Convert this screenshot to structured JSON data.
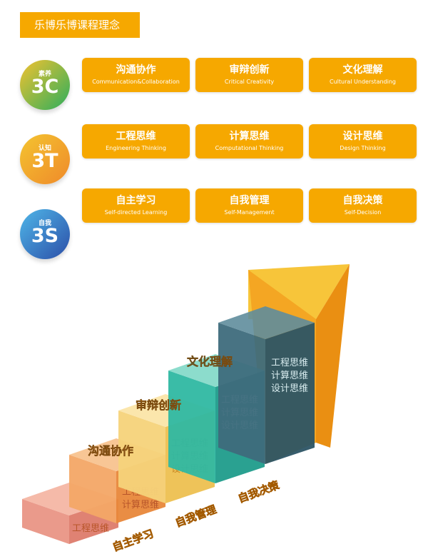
{
  "title": "乐博乐博课程理念",
  "rows": [
    {
      "small": "素养",
      "big": "3C",
      "grad": [
        "#f2c230",
        "#2dae5c"
      ],
      "cards": [
        {
          "zh": "沟通协作",
          "en": "Communication&Collaboration"
        },
        {
          "zh": "审辩创新",
          "en": "Critical Creativity"
        },
        {
          "zh": "文化理解",
          "en": "Cultural Understanding"
        }
      ]
    },
    {
      "small": "认知",
      "big": "3T",
      "grad": [
        "#f4c430",
        "#ef8a2a"
      ],
      "cards": [
        {
          "zh": "工程思维",
          "en": "Engineering Thinking"
        },
        {
          "zh": "计算思维",
          "en": "Computational Thinking"
        },
        {
          "zh": "设计思维",
          "en": "Design Thinking"
        }
      ]
    },
    {
      "small": "自我",
      "big": "3S",
      "grad": [
        "#4fb6e8",
        "#2c4fa8"
      ],
      "cards": [
        {
          "zh": "自主学习",
          "en": "Self-directed Learning"
        },
        {
          "zh": "自我管理",
          "en": "Self-Management"
        },
        {
          "zh": "自我决策",
          "en": "Self-Decision"
        }
      ]
    }
  ],
  "stairs": {
    "top_labels": [
      "沟通协作",
      "审辩创新",
      "文化理解"
    ],
    "face_labels": [
      [
        "工程思维"
      ],
      [
        "工程思维",
        "计算思维"
      ],
      [
        "工程思维",
        "计算思维",
        "设计思维"
      ],
      [
        "工程思维",
        "计算思维",
        "设计思维"
      ],
      [
        "工程思维",
        "计算思维",
        "设计思维"
      ]
    ],
    "floor_labels": [
      "自主学习",
      "自我管理",
      "自我决策"
    ]
  }
}
